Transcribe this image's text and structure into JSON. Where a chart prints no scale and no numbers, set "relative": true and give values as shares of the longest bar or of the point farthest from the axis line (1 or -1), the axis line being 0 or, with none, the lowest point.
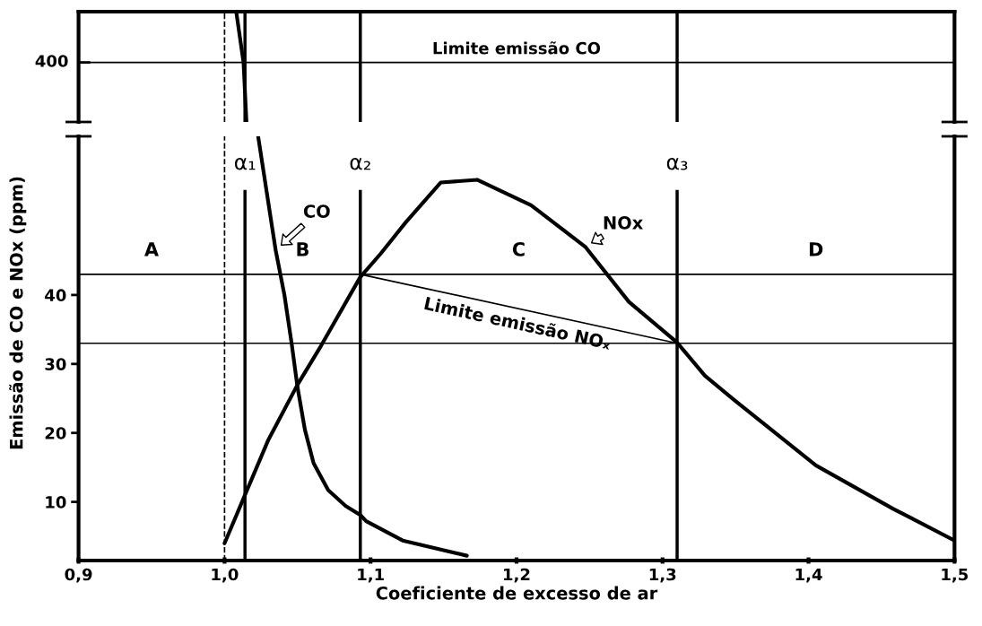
{
  "chart_data": [
    {
      "type": "line",
      "xlim": [
        0.9,
        1.5
      ],
      "relative": true,
      "tick_labels": false,
      "grid": false,
      "legend": false,
      "series": [
        {
          "color": "#000000",
          "x": [
            1.008,
            1.013,
            1.015
          ],
          "values": [
            1,
            0.54,
            0
          ]
        }
      ],
      "annotations": [
        "400"
      ],
      "ref_lines": [
        {
          "axis": "y",
          "value": 0.54,
          "label": "Limite emissão CO",
          "color": "#000000"
        },
        {
          "axis": "x",
          "value": 1.0,
          "line_style": "dashed",
          "color": "#000000"
        },
        {
          "axis": "x",
          "value": 1.014,
          "color": "#000000"
        },
        {
          "axis": "x",
          "value": 1.093,
          "color": "#000000"
        },
        {
          "axis": "x",
          "value": 1.31,
          "color": "#000000"
        }
      ]
    },
    {
      "type": "line",
      "xlim": [
        0.9,
        1.5
      ],
      "ylim": [
        1.5,
        63
      ],
      "yticks": [
        10,
        20,
        30,
        40
      ],
      "xticks": [
        {
          "value": 0.9,
          "label": "0,9"
        },
        {
          "value": 1.0,
          "label": "1,0"
        },
        {
          "value": 1.1,
          "label": "1,1"
        },
        {
          "value": 1.2,
          "label": "1,2"
        },
        {
          "value": 1.3,
          "label": "1,3"
        },
        {
          "value": 1.4,
          "label": "1,4"
        },
        {
          "value": 1.5,
          "label": "1,5"
        }
      ],
      "xlabel": "Coeficiente de excesso de ar",
      "ylabel": "Emissão de CO e NOx (ppm)",
      "grid": false,
      "legend": false,
      "series": [
        {
          "name": "CO",
          "color": "#000000",
          "x": [
            1.023,
            1.035,
            1.041,
            1.046,
            1.05,
            1.055,
            1.061,
            1.071,
            1.083,
            1.093,
            1.097,
            1.122,
            1.166
          ],
          "values": [
            63,
            46.5,
            40,
            32.9,
            26.6,
            20.5,
            15.6,
            11.7,
            9.4,
            8.1,
            7.2,
            4.4,
            2.2
          ]
        },
        {
          "name": "NOx",
          "color": "#000000",
          "x": [
            1.0,
            1.014,
            1.03,
            1.05,
            1.066,
            1.093,
            1.107,
            1.124,
            1.148,
            1.173,
            1.21,
            1.247,
            1.277,
            1.31,
            1.329,
            1.349,
            1.405,
            1.458,
            1.5
          ],
          "values": [
            4,
            11,
            19,
            27,
            32.6,
            42.6,
            46,
            50.5,
            56.3,
            56.7,
            53,
            47,
            39,
            33.1,
            28.3,
            24.8,
            15.3,
            9,
            4.4
          ]
        },
        {
          "name": "Limite emissão NOₓ",
          "color": "#000000",
          "x": [
            1.093,
            1.31
          ],
          "values": [
            43,
            33
          ]
        }
      ],
      "ref_lines": [
        {
          "axis": "y",
          "value": 43,
          "color": "#000000"
        },
        {
          "axis": "y",
          "value": 33,
          "color": "#000000"
        },
        {
          "axis": "x",
          "value": 1.0,
          "line_style": "dashed",
          "color": "#000000"
        },
        {
          "axis": "x",
          "value": 1.014,
          "label": "α₁",
          "color": "#000000"
        },
        {
          "axis": "x",
          "value": 1.093,
          "label": "α₂",
          "color": "#000000"
        },
        {
          "axis": "x",
          "value": 1.31,
          "label": "α₃",
          "color": "#000000"
        }
      ],
      "annotations": [
        "A",
        "B",
        "C",
        "D"
      ]
    }
  ]
}
